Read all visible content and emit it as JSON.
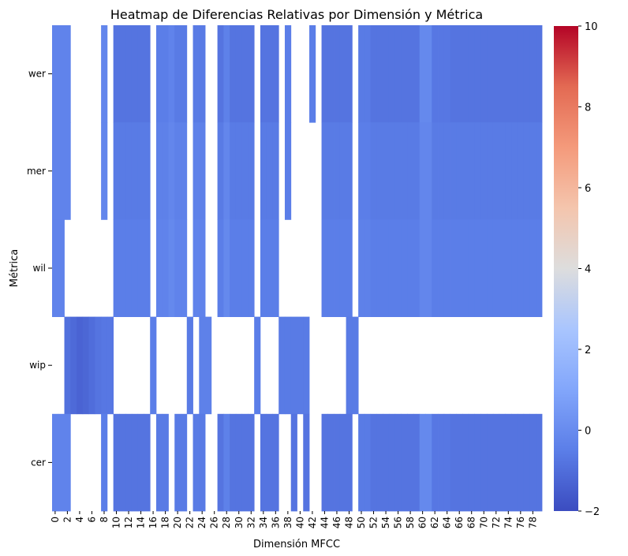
{
  "chart_data": {
    "type": "heatmap",
    "title": "Heatmap de Diferencias Relativas por Dimensión y Métrica",
    "xlabel": "Dimensión MFCC",
    "ylabel": "Métrica",
    "rows": [
      "wer",
      "mer",
      "wil",
      "wip",
      "cer"
    ],
    "columns": "0..79",
    "x_tick_labels": [
      "0",
      "2",
      "4",
      "6",
      "8",
      "10",
      "12",
      "14",
      "16",
      "18",
      "20",
      "22",
      "24",
      "26",
      "28",
      "30",
      "32",
      "34",
      "36",
      "38",
      "40",
      "42",
      "44",
      "46",
      "48",
      "50",
      "52",
      "54",
      "56",
      "58",
      "60",
      "62",
      "64",
      "66",
      "68",
      "70",
      "72",
      "74",
      "76",
      "78"
    ],
    "colorbar": {
      "min": -2,
      "max": 10,
      "ticks": [
        -2,
        0,
        2,
        4,
        6,
        8,
        10
      ],
      "colormap": "coolwarm"
    },
    "missing_color": "#ffffff",
    "values": [
      [
        -0.3,
        -0.3,
        -0.3,
        null,
        null,
        null,
        null,
        null,
        -0.2,
        null,
        -0.8,
        -0.8,
        -0.8,
        -0.8,
        -0.8,
        -0.8,
        null,
        -0.5,
        -0.5,
        -0.3,
        -0.6,
        -0.6,
        null,
        -0.6,
        -0.6,
        null,
        null,
        -0.8,
        -0.4,
        -0.8,
        -0.8,
        -0.8,
        -0.8,
        null,
        -0.8,
        -0.8,
        -0.8,
        null,
        -0.5,
        null,
        null,
        null,
        -0.5,
        null,
        -0.8,
        -0.8,
        -0.8,
        -0.8,
        -0.8,
        null,
        -0.6,
        -0.6,
        -0.8,
        -0.8,
        -0.8,
        -0.8,
        -0.8,
        -0.8,
        -0.8,
        -0.8,
        -0.1,
        -0.1,
        -0.7,
        -0.7,
        -0.7,
        -0.8,
        -0.8,
        -0.8,
        -0.8,
        -0.8,
        -0.8,
        -0.8,
        -0.8,
        -0.8,
        -0.8,
        -0.8,
        -0.8,
        -0.8,
        -0.8,
        -0.8
      ],
      [
        -0.3,
        -0.3,
        -0.3,
        null,
        null,
        null,
        null,
        null,
        -0.2,
        null,
        -0.6,
        -0.6,
        -0.6,
        -0.6,
        -0.6,
        -0.6,
        null,
        -0.4,
        -0.4,
        -0.2,
        -0.4,
        -0.4,
        null,
        -0.4,
        -0.4,
        null,
        null,
        -0.6,
        -0.2,
        -0.6,
        -0.6,
        -0.6,
        -0.6,
        null,
        -0.6,
        -0.6,
        -0.6,
        null,
        -0.5,
        null,
        null,
        null,
        null,
        null,
        -0.6,
        -0.6,
        -0.6,
        -0.6,
        -0.6,
        null,
        -0.5,
        -0.5,
        -0.6,
        -0.6,
        -0.6,
        -0.6,
        -0.6,
        -0.6,
        -0.6,
        -0.6,
        -0.2,
        -0.2,
        -0.6,
        -0.6,
        -0.6,
        -0.6,
        -0.6,
        -0.6,
        -0.6,
        -0.6,
        -0.6,
        -0.6,
        -0.6,
        -0.6,
        -0.6,
        -0.6,
        -0.6,
        -0.6,
        -0.6,
        -0.6
      ],
      [
        -0.3,
        -0.3,
        null,
        null,
        null,
        null,
        null,
        null,
        null,
        null,
        -0.5,
        -0.5,
        -0.5,
        -0.5,
        -0.5,
        -0.5,
        null,
        -0.3,
        -0.3,
        -0.1,
        -0.3,
        -0.3,
        null,
        -0.3,
        -0.3,
        null,
        null,
        -0.5,
        -0.1,
        -0.5,
        -0.5,
        -0.5,
        -0.5,
        null,
        -0.5,
        -0.5,
        -0.5,
        null,
        null,
        null,
        null,
        null,
        null,
        null,
        -0.5,
        -0.5,
        -0.5,
        -0.5,
        -0.5,
        null,
        -0.4,
        -0.4,
        -0.5,
        -0.5,
        -0.5,
        -0.5,
        -0.5,
        -0.5,
        -0.5,
        -0.5,
        -0.2,
        -0.2,
        -0.5,
        -0.5,
        -0.5,
        -0.5,
        -0.5,
        -0.5,
        -0.5,
        -0.5,
        -0.5,
        -0.5,
        -0.5,
        -0.5,
        -0.5,
        -0.5,
        -0.5,
        -0.5,
        -0.5,
        -0.5
      ],
      [
        null,
        null,
        -0.9,
        -1.1,
        -1.3,
        -1.2,
        -1.0,
        -0.8,
        -0.7,
        -0.7,
        null,
        null,
        null,
        null,
        null,
        null,
        -0.5,
        null,
        null,
        null,
        null,
        null,
        -0.6,
        null,
        -0.4,
        -0.4,
        null,
        null,
        null,
        null,
        null,
        null,
        null,
        -0.5,
        null,
        null,
        null,
        -0.6,
        -0.6,
        -0.6,
        -0.6,
        -0.6,
        null,
        null,
        null,
        null,
        null,
        null,
        -0.6,
        -0.6,
        null,
        null,
        null,
        null,
        null,
        null,
        null,
        null,
        null,
        null,
        null,
        null,
        null,
        null,
        null,
        null,
        null,
        null,
        null,
        null,
        null,
        null,
        null,
        null,
        null,
        null,
        null,
        null,
        null,
        null
      ],
      [
        -0.3,
        -0.3,
        -0.3,
        null,
        null,
        null,
        null,
        null,
        -0.5,
        null,
        -0.8,
        -0.8,
        -0.8,
        -0.8,
        -0.8,
        -0.8,
        null,
        -0.6,
        -0.6,
        null,
        -0.6,
        -0.6,
        null,
        -0.6,
        -0.6,
        null,
        null,
        -0.8,
        -0.4,
        -0.8,
        -0.8,
        -0.8,
        -0.8,
        null,
        -0.8,
        -0.8,
        -0.8,
        null,
        null,
        -0.8,
        null,
        -0.8,
        null,
        null,
        -0.8,
        -0.8,
        -0.8,
        -0.8,
        -0.8,
        null,
        -0.6,
        -0.6,
        -0.8,
        -0.8,
        -0.8,
        -0.8,
        -0.8,
        -0.8,
        -0.8,
        -0.8,
        -0.1,
        -0.1,
        -0.7,
        -0.7,
        -0.7,
        -0.8,
        -0.8,
        -0.8,
        -0.8,
        -0.8,
        -0.8,
        -0.8,
        -0.8,
        -0.8,
        -0.8,
        -0.8,
        -0.8,
        -0.8,
        -0.8,
        -0.8
      ]
    ]
  }
}
